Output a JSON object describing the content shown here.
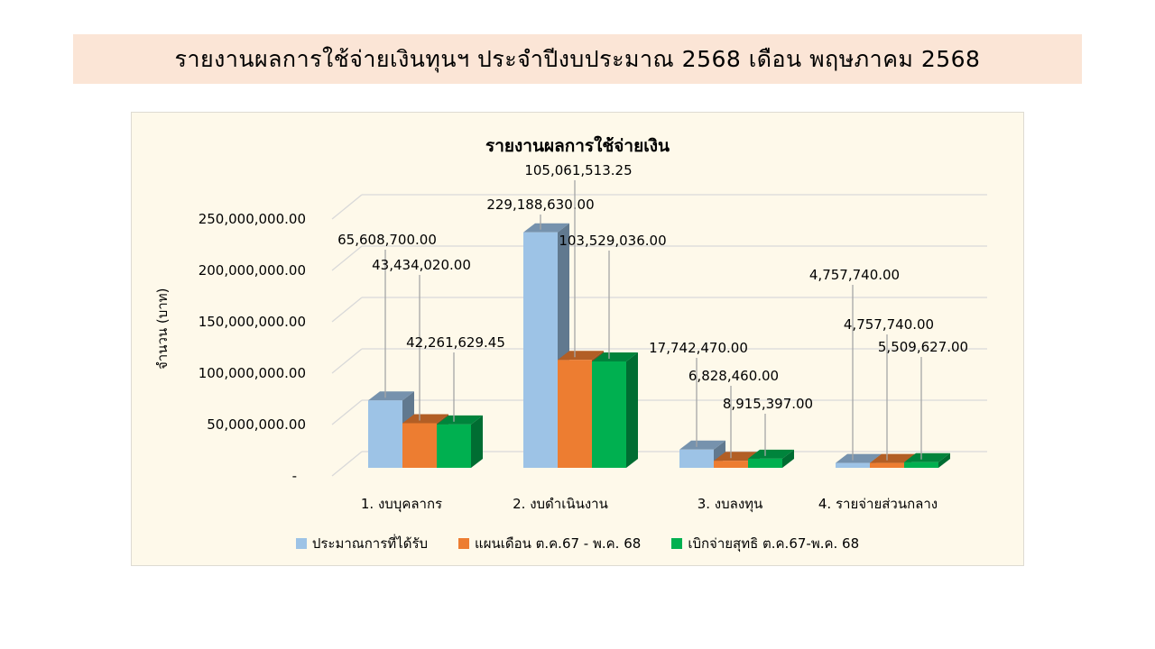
{
  "banner": {
    "title": "รายงานผลการใช้จ่ายเงินทุนฯ  ประจำปีงบประมาณ  2568 เดือน  พฤษภาคม  2568"
  },
  "colors": {
    "banner_bg": "#fbe5d6",
    "chart_bg": "#fef9ea",
    "series_budget": "#9dc3e6",
    "series_plan": "#ed7d31",
    "series_actual": "#00b050"
  },
  "chart_data": {
    "type": "bar",
    "style": "3d-clustered-column",
    "title": "รายงานผลการใช้จ่ายเงิน",
    "xlabel": "",
    "ylabel": "จำนวน (บาท)",
    "ylim": [
      0,
      250000000
    ],
    "yticks": [
      "-",
      "50,000,000.00",
      "100,000,000.00",
      "150,000,000.00",
      "200,000,000.00",
      "250,000,000.00"
    ],
    "grid": true,
    "legend_position": "bottom",
    "categories": [
      "1. งบบุคลากร",
      "2. งบดำเนินงาน",
      "3. งบลงทุน",
      "4. รายจ่ายส่วนกลาง"
    ],
    "series": [
      {
        "name": "ประมาณการที่ได้รับ",
        "color": "#9dc3e6",
        "values": [
          65608700.0,
          229188630.0,
          17742470.0,
          4757740.0
        ],
        "labels": [
          "65,608,700.00",
          "229,188,630.00",
          "17,742,470.00",
          "4,757,740.00"
        ]
      },
      {
        "name": "แผนเดือน ต.ค.67 - พ.ค. 68",
        "color": "#ed7d31",
        "values": [
          43434020.0,
          105061513.25,
          6828460.0,
          4757740.0
        ],
        "labels": [
          "43,434,020.00",
          "105,061,513.25",
          "6,828,460.00",
          "4,757,740.00"
        ]
      },
      {
        "name": "เบิกจ่ายสุทธิ ต.ค.67-พ.ค. 68",
        "color": "#00b050",
        "values": [
          42261629.45,
          103529036.0,
          8915397.0,
          5509627.0
        ],
        "labels": [
          "42,261,629.45",
          "103,529,036.00",
          "8,915,397.00",
          "5,509,627.00"
        ]
      }
    ]
  }
}
